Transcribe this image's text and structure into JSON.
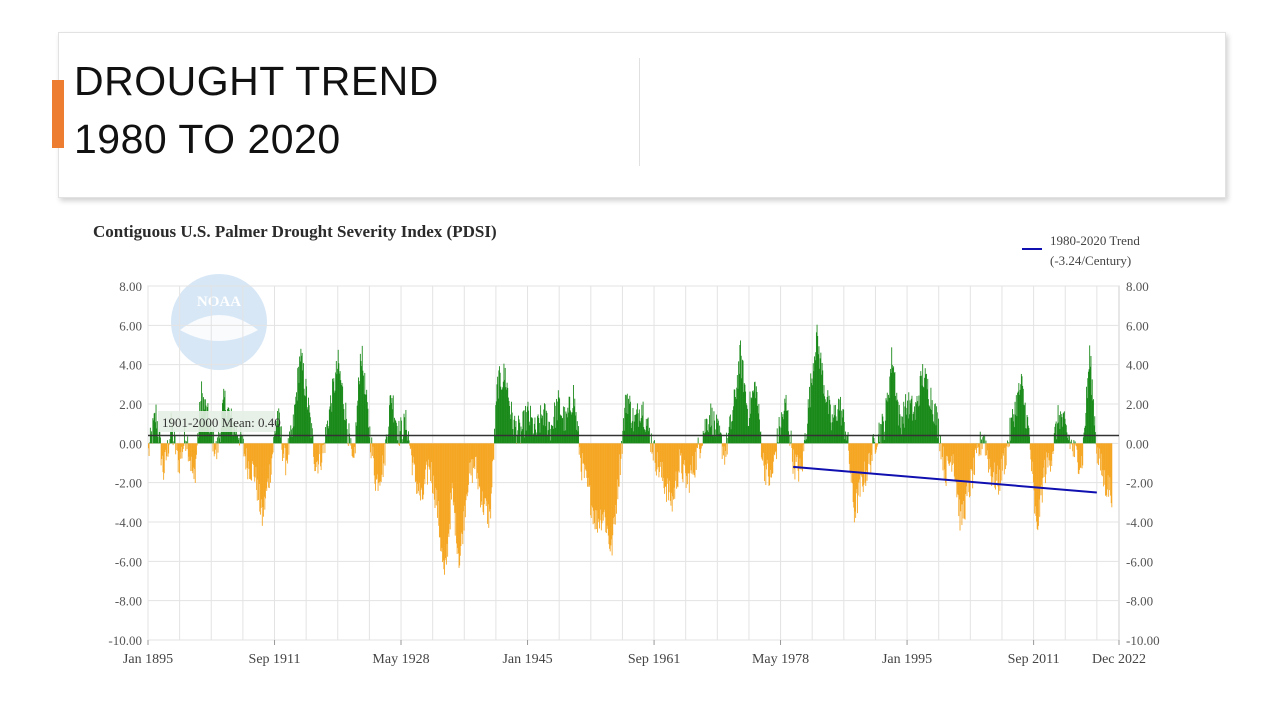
{
  "slide": {
    "title_line1": "DROUGHT TREND",
    "title_line2": "1980 TO 2020",
    "accent_color": "#ed7d31"
  },
  "chart_data": {
    "type": "bar",
    "title": "Contiguous U.S. Palmer Drought Severity Index (PDSI)",
    "xlabel": "",
    "ylabel": "",
    "x_range": [
      1895.0,
      2022.92
    ],
    "ylim": [
      -10,
      8
    ],
    "y_ticks": [
      8,
      6,
      4,
      2,
      0,
      -2,
      -4,
      -6,
      -8,
      -10
    ],
    "y_tick_labels": [
      "8.00",
      "6.00",
      "4.00",
      "2.00",
      "0.00",
      "-2.00",
      "-4.00",
      "-6.00",
      "-8.00",
      "-10.00"
    ],
    "x_ticks": [
      {
        "label": "Jan 1895",
        "x": 1895.0
      },
      {
        "label": "Sep 1911",
        "x": 1911.67
      },
      {
        "label": "May 1928",
        "x": 1928.33
      },
      {
        "label": "Jan 1945",
        "x": 1945.0
      },
      {
        "label": "Sep 1961",
        "x": 1961.67
      },
      {
        "label": "May 1978",
        "x": 1978.33
      },
      {
        "label": "Jan 1995",
        "x": 1995.0
      },
      {
        "label": "Sep 2011",
        "x": 2011.67
      },
      {
        "label": "Dec 2022",
        "x": 2022.92
      }
    ],
    "positive_color": "#1a8a1a",
    "negative_color": "#f5a623",
    "mean_line": {
      "label": "1901-2000 Mean: 0.40",
      "value": 0.4,
      "color": "#333333"
    },
    "trend": {
      "legend_line1": "1980-2020 Trend",
      "legend_line2": "(-3.24/Century)",
      "color": "#1010b0",
      "x": [
        1980.0,
        2020.0
      ],
      "y": [
        -1.2,
        -2.5
      ]
    },
    "series_keypoints": [
      [
        1895,
        -0.5
      ],
      [
        1896,
        1.5
      ],
      [
        1897,
        -1.5
      ],
      [
        1898,
        0.8
      ],
      [
        1899,
        -1.0
      ],
      [
        1900,
        0.5
      ],
      [
        1901,
        -2.0
      ],
      [
        1902,
        2.5
      ],
      [
        1903,
        1.0
      ],
      [
        1904,
        -0.5
      ],
      [
        1905,
        2.2
      ],
      [
        1906,
        1.0
      ],
      [
        1907,
        0.5
      ],
      [
        1908,
        -1.0
      ],
      [
        1909,
        -1.5
      ],
      [
        1910,
        -3.8
      ],
      [
        1911,
        -1.5
      ],
      [
        1912,
        1.5
      ],
      [
        1913,
        -1.0
      ],
      [
        1914,
        0.5
      ],
      [
        1915,
        4.5
      ],
      [
        1916,
        2.0
      ],
      [
        1917,
        -1.0
      ],
      [
        1918,
        -0.5
      ],
      [
        1919,
        2.0
      ],
      [
        1920,
        4.0
      ],
      [
        1921,
        1.5
      ],
      [
        1922,
        -1.5
      ],
      [
        1923,
        4.8
      ],
      [
        1924,
        1.0
      ],
      [
        1925,
        -2.0
      ],
      [
        1926,
        -1.0
      ],
      [
        1927,
        2.5
      ],
      [
        1928,
        0.5
      ],
      [
        1929,
        1.0
      ],
      [
        1930,
        -1.5
      ],
      [
        1931,
        -3.0
      ],
      [
        1932,
        -1.0
      ],
      [
        1933,
        -3.0
      ],
      [
        1934,
        -7.0
      ],
      [
        1935,
        -2.5
      ],
      [
        1936,
        -6.0
      ],
      [
        1937,
        -2.0
      ],
      [
        1938,
        -1.0
      ],
      [
        1939,
        -3.0
      ],
      [
        1940,
        -3.8
      ],
      [
        1941,
        3.0
      ],
      [
        1942,
        3.5
      ],
      [
        1943,
        1.0
      ],
      [
        1944,
        0.5
      ],
      [
        1945,
        1.5
      ],
      [
        1946,
        0.5
      ],
      [
        1947,
        1.5
      ],
      [
        1948,
        0.8
      ],
      [
        1949,
        2.0
      ],
      [
        1950,
        1.0
      ],
      [
        1951,
        2.5
      ],
      [
        1952,
        -1.0
      ],
      [
        1953,
        -2.5
      ],
      [
        1954,
        -4.0
      ],
      [
        1955,
        -3.5
      ],
      [
        1956,
        -5.5
      ],
      [
        1957,
        -1.5
      ],
      [
        1958,
        2.5
      ],
      [
        1959,
        1.0
      ],
      [
        1960,
        2.0
      ],
      [
        1961,
        0.5
      ],
      [
        1962,
        -1.0
      ],
      [
        1963,
        -2.0
      ],
      [
        1964,
        -3.0
      ],
      [
        1965,
        -1.0
      ],
      [
        1966,
        -2.0
      ],
      [
        1967,
        -1.0
      ],
      [
        1968,
        0.5
      ],
      [
        1969,
        1.5
      ],
      [
        1970,
        0.5
      ],
      [
        1971,
        -0.5
      ],
      [
        1972,
        1.5
      ],
      [
        1973,
        4.5
      ],
      [
        1974,
        1.5
      ],
      [
        1975,
        3.0
      ],
      [
        1976,
        -1.0
      ],
      [
        1977,
        -2.0
      ],
      [
        1978,
        0.5
      ],
      [
        1979,
        2.0
      ],
      [
        1980,
        -1.0
      ],
      [
        1981,
        -1.5
      ],
      [
        1982,
        2.0
      ],
      [
        1983,
        5.5
      ],
      [
        1984,
        3.0
      ],
      [
        1985,
        1.0
      ],
      [
        1986,
        2.0
      ],
      [
        1987,
        0.5
      ],
      [
        1988,
        -3.5
      ],
      [
        1989,
        -2.0
      ],
      [
        1990,
        -1.0
      ],
      [
        1991,
        0.5
      ],
      [
        1992,
        1.0
      ],
      [
        1993,
        4.5
      ],
      [
        1994,
        1.0
      ],
      [
        1995,
        2.0
      ],
      [
        1996,
        1.5
      ],
      [
        1997,
        3.5
      ],
      [
        1998,
        2.5
      ],
      [
        1999,
        1.0
      ],
      [
        2000,
        -1.5
      ],
      [
        2001,
        -0.5
      ],
      [
        2002,
        -4.0
      ],
      [
        2003,
        -2.5
      ],
      [
        2004,
        -1.0
      ],
      [
        2005,
        0.5
      ],
      [
        2006,
        -1.5
      ],
      [
        2007,
        -2.0
      ],
      [
        2008,
        -0.5
      ],
      [
        2009,
        1.5
      ],
      [
        2010,
        3.0
      ],
      [
        2011,
        0.5
      ],
      [
        2012,
        -4.5
      ],
      [
        2013,
        -1.5
      ],
      [
        2014,
        -0.5
      ],
      [
        2015,
        1.5
      ],
      [
        2016,
        0.5
      ],
      [
        2017,
        -0.5
      ],
      [
        2018,
        -1.0
      ],
      [
        2019,
        4.5
      ],
      [
        2020,
        -0.5
      ],
      [
        2021,
        -2.0
      ],
      [
        2022,
        -2.5
      ]
    ]
  }
}
